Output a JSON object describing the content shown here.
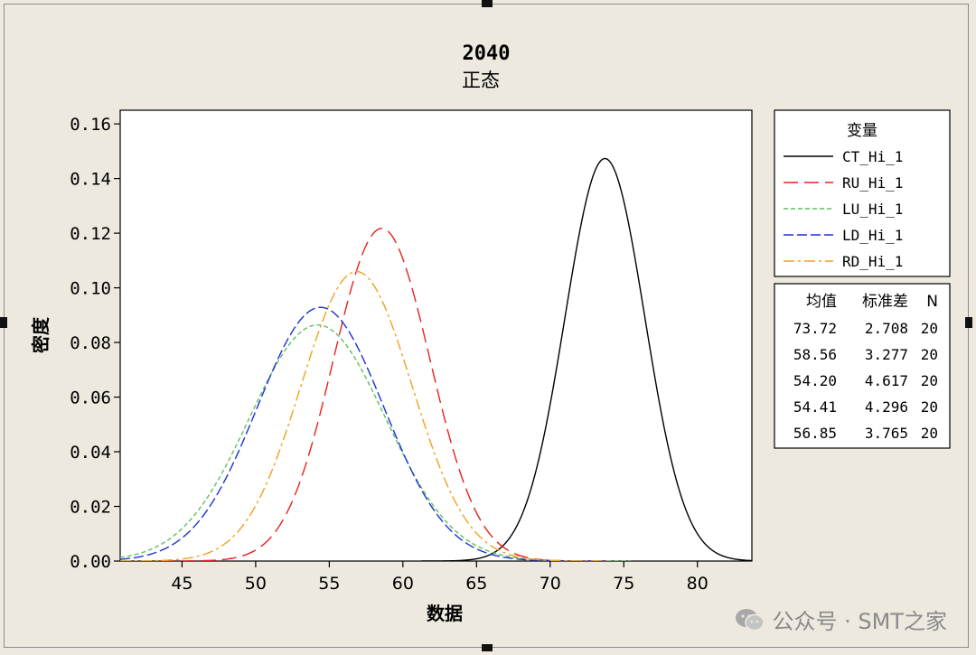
{
  "chart_data": {
    "type": "line",
    "title": "2040",
    "subtitle": "正态",
    "xlabel": "数据",
    "ylabel": "密度",
    "xlim": [
      40.8,
      83.7
    ],
    "ylim": [
      0,
      0.165
    ],
    "xticks": [
      45,
      50,
      55,
      60,
      65,
      70,
      75,
      80
    ],
    "yticks": [
      0.0,
      0.02,
      0.04,
      0.06,
      0.08,
      0.1,
      0.12,
      0.14,
      0.16
    ],
    "ytick_labels": [
      "0.00",
      "0.02",
      "0.04",
      "0.06",
      "0.08",
      "0.10",
      "0.12",
      "0.14",
      "0.16"
    ],
    "legend_title": "变量",
    "legend_position": "right",
    "series": [
      {
        "name": "CT_Hi_1",
        "mean": 73.72,
        "stdev": 2.708,
        "n": 20,
        "color": "#000000",
        "dash": "solid"
      },
      {
        "name": "RU_Hi_1",
        "mean": 58.56,
        "stdev": 3.277,
        "n": 20,
        "color": "#e8201c",
        "dash": "long-dash"
      },
      {
        "name": "LU_Hi_1",
        "mean": 54.2,
        "stdev": 4.617,
        "n": 20,
        "color": "#5fbf5f",
        "dash": "short-dash"
      },
      {
        "name": "LD_Hi_1",
        "mean": 54.41,
        "stdev": 4.296,
        "n": 20,
        "color": "#1a32d8",
        "dash": "dash"
      },
      {
        "name": "RD_Hi_1",
        "mean": 56.85,
        "stdev": 3.765,
        "n": 20,
        "color": "#f0a01e",
        "dash": "dash-dot"
      }
    ],
    "stats_table": {
      "headers": [
        "均值",
        "标准差",
        "N"
      ],
      "rows": [
        [
          "73.72",
          "2.708",
          "20"
        ],
        [
          "58.56",
          "3.277",
          "20"
        ],
        [
          "54.20",
          "4.617",
          "20"
        ],
        [
          "54.41",
          "4.296",
          "20"
        ],
        [
          "56.85",
          "3.765",
          "20"
        ]
      ]
    }
  },
  "watermark": {
    "text": "公众号 · SMT之家",
    "icon": "wechat-icon"
  }
}
